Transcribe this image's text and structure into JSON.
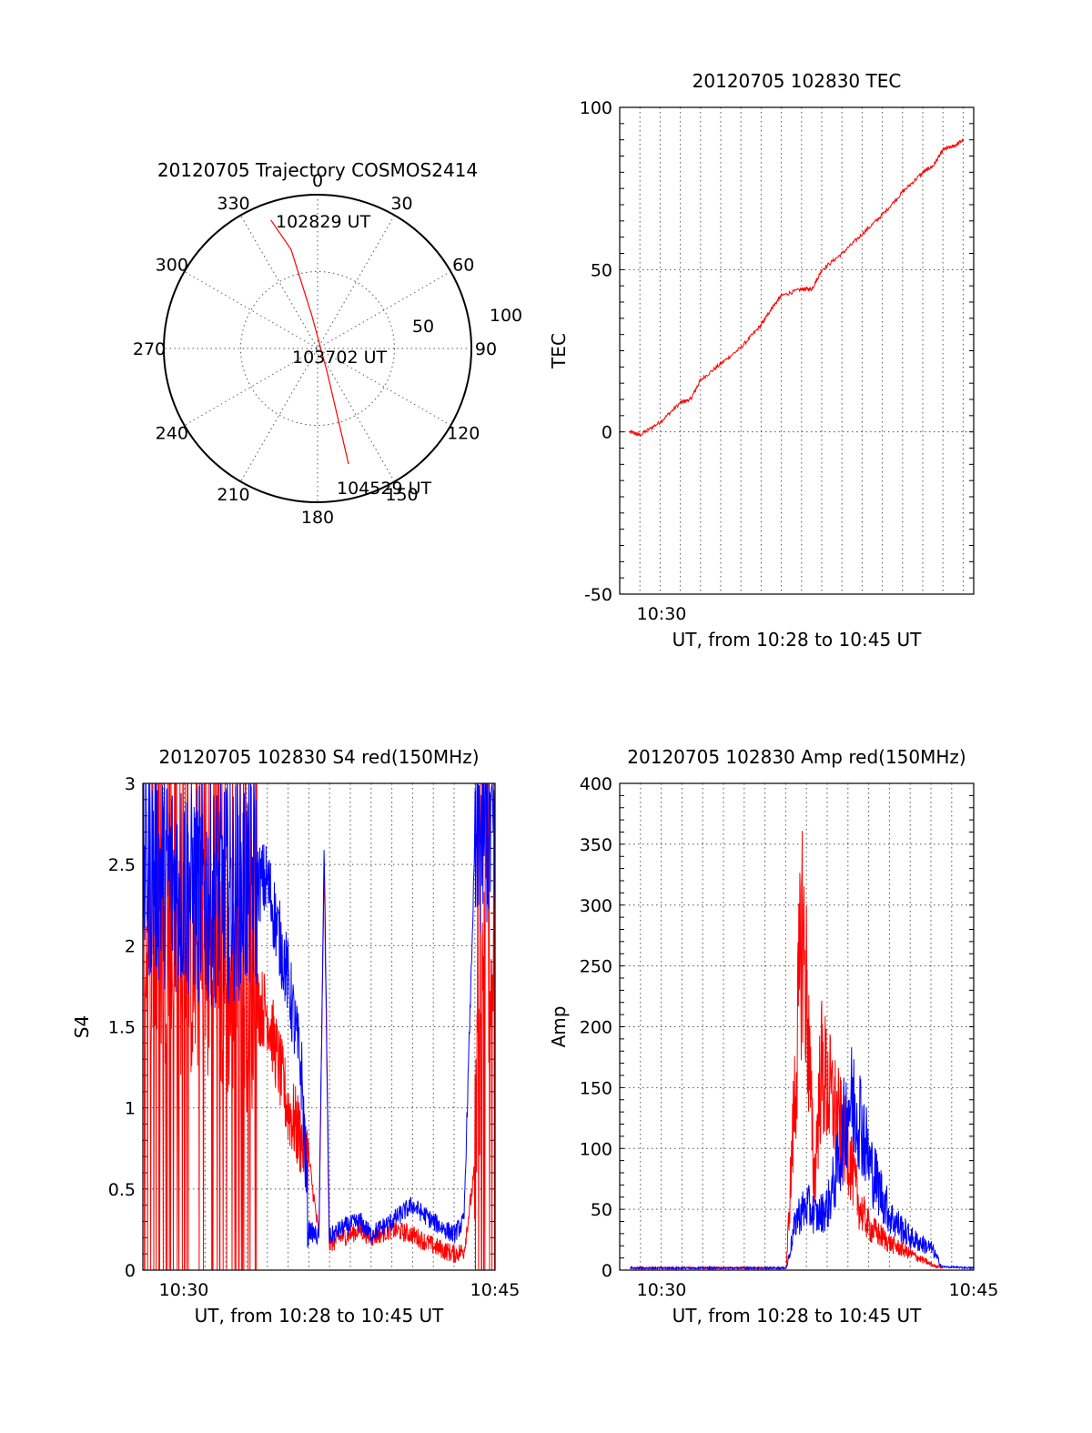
{
  "colors": {
    "red": "#ff0000",
    "blue": "#0000ff"
  },
  "chart_data": [
    {
      "type": "polar",
      "title": "20120705 Trajectory COSMOS2414",
      "azimuth_labels": [
        "0",
        "30",
        "60",
        "90",
        "120",
        "150",
        "180",
        "210",
        "240",
        "270",
        "300",
        "330"
      ],
      "radius_labels": [
        "50",
        "100"
      ],
      "track": {
        "name": "COSMOS2414",
        "azimuth": [
          340,
          345,
          350,
          158,
          165
        ],
        "elevation": [
          10,
          30,
          70,
          75,
          20
        ],
        "color": "#ff0000"
      },
      "annotations": [
        "102829 UT",
        "103702 UT",
        "104529 UT"
      ]
    },
    {
      "type": "line",
      "title": "20120705 102830 TEC",
      "xlabel": "UT, from 10:28 to 10:45 UT",
      "ylabel": "TEC",
      "xlim": [
        "10:28:00",
        "10:45:30"
      ],
      "ylim": [
        -50,
        100
      ],
      "x_ticks": [
        "10:30"
      ],
      "y_ticks": [
        "-50",
        "0",
        "50",
        "100"
      ],
      "grid": true,
      "series": [
        {
          "color": "#ff0000",
          "x": [
            "10:28:30",
            "10:29:00",
            "10:30:00",
            "10:31:00",
            "10:31:30",
            "10:32:00",
            "10:33:00",
            "10:34:00",
            "10:35:00",
            "10:35:30",
            "10:36:00",
            "10:37:00",
            "10:37:30",
            "10:38:00",
            "10:39:00",
            "10:40:00",
            "10:41:00",
            "10:42:00",
            "10:43:00",
            "10:43:30",
            "10:44:00",
            "10:44:30",
            "10:45:00"
          ],
          "y": [
            0,
            -1,
            3,
            9,
            10,
            16,
            21,
            26,
            33,
            38,
            42,
            44,
            44,
            50,
            55,
            61,
            67,
            74,
            80,
            82,
            87,
            88,
            90
          ]
        }
      ]
    },
    {
      "type": "line",
      "title": "20120705 102830 S4 red(150MHz)",
      "xlabel": "UT, from 10:28 to 10:45 UT",
      "ylabel": "S4",
      "xlim": [
        "10:28:00",
        "10:45:00"
      ],
      "ylim": [
        0,
        3
      ],
      "x_ticks": [
        "10:30",
        "10:45"
      ],
      "y_ticks": [
        "0",
        "0.5",
        "1",
        "1.5",
        "2",
        "2.5",
        "3"
      ],
      "grid": true,
      "series": [
        {
          "color": "#ff0000",
          "x": [
            "10:28:00",
            "10:31:00",
            "10:34:00",
            "10:35:00",
            "10:36:00",
            "10:36:30",
            "10:36:45",
            "10:37:00",
            "10:37:30",
            "10:38:00",
            "10:38:30",
            "10:39:00",
            "10:40:00",
            "10:41:00",
            "10:42:00",
            "10:43:00",
            "10:43:30",
            "10:44:00",
            "10:44:30",
            "10:45:00"
          ],
          "y": [
            2.0,
            1.8,
            1.6,
            1.0,
            0.7,
            0.2,
            2.5,
            0.15,
            0.2,
            0.22,
            0.25,
            0.2,
            0.25,
            0.22,
            0.15,
            0.1,
            0.12,
            0.6,
            2.0,
            1.8
          ]
        },
        {
          "color": "#0000ff",
          "x": [
            "10:28:00",
            "10:31:00",
            "10:34:00",
            "10:35:00",
            "10:35:40",
            "10:36:00",
            "10:36:30",
            "10:36:45",
            "10:37:00",
            "10:37:30",
            "10:38:00",
            "10:38:30",
            "10:39:00",
            "10:40:00",
            "10:41:00",
            "10:42:00",
            "10:43:00",
            "10:43:30",
            "10:44:00",
            "10:44:30",
            "10:45:00"
          ],
          "y": [
            2.5,
            2.3,
            2.4,
            1.8,
            1.2,
            0.25,
            0.2,
            2.6,
            0.2,
            0.25,
            0.28,
            0.3,
            0.22,
            0.3,
            0.4,
            0.3,
            0.22,
            0.3,
            2.5,
            2.8,
            2.7
          ]
        }
      ]
    },
    {
      "type": "line",
      "title": "20120705 102830 Amp red(150MHz)",
      "xlabel": "UT, from 10:28 to 10:45 UT",
      "ylabel": "Amp",
      "xlim": [
        "10:28:00",
        "10:45:00"
      ],
      "ylim": [
        0,
        400
      ],
      "x_ticks": [
        "10:30",
        "10:45"
      ],
      "y_ticks": [
        "0",
        "50",
        "100",
        "150",
        "200",
        "250",
        "300",
        "350",
        "400"
      ],
      "grid": true,
      "series": [
        {
          "color": "#ff0000",
          "x": [
            "10:28:30",
            "10:36:00",
            "10:36:30",
            "10:36:45",
            "10:37:00",
            "10:37:20",
            "10:37:40",
            "10:38:00",
            "10:38:30",
            "10:39:00",
            "10:39:30",
            "10:40:00",
            "10:41:00",
            "10:42:00",
            "10:43:00",
            "10:43:30"
          ],
          "y": [
            1,
            1,
            200,
            330,
            250,
            80,
            190,
            170,
            140,
            110,
            60,
            40,
            25,
            15,
            5,
            1
          ]
        },
        {
          "color": "#0000ff",
          "x": [
            "10:28:30",
            "10:36:00",
            "10:36:30",
            "10:37:00",
            "10:37:30",
            "10:38:00",
            "10:38:30",
            "10:39:00",
            "10:39:30",
            "10:40:00",
            "10:41:00",
            "10:42:00",
            "10:43:00",
            "10:43:30",
            "10:45:00"
          ],
          "y": [
            1,
            1,
            50,
            60,
            50,
            60,
            100,
            160,
            150,
            100,
            50,
            30,
            20,
            2,
            1
          ]
        }
      ]
    }
  ]
}
